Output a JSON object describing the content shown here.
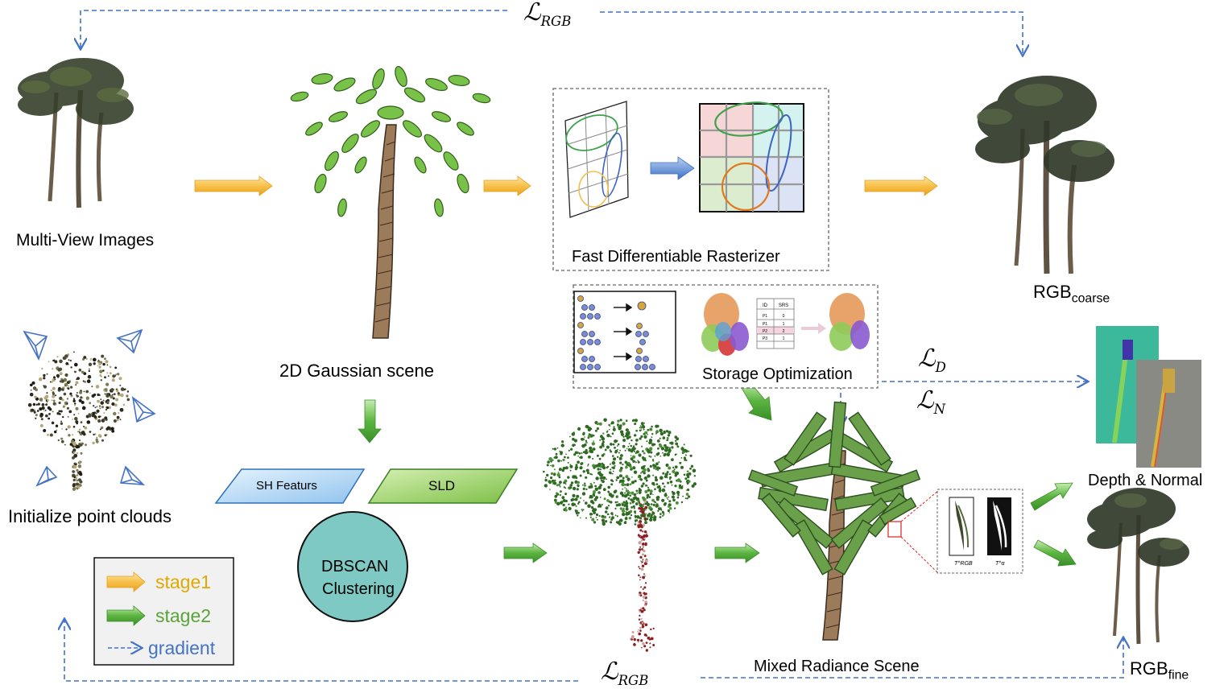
{
  "labels": {
    "multi_view": "Multi-View Images",
    "gaussian_scene": "2D Gaussian scene",
    "rasterizer": "Fast Differentiable Rasterizer",
    "rgb_coarse_main": "RGB",
    "rgb_coarse_sub": "coarse",
    "storage_opt": "Storage Optimization",
    "init_points": "Initialize point clouds",
    "sh_features": "SH Featurs",
    "sld": "SLD",
    "dbscan_line1": "DBSCAN",
    "dbscan_line2": "Clustering",
    "mixed_scene": "Mixed Radiance Scene",
    "depth_normal": "Depth & Normal",
    "rgb_fine_main": "RGB",
    "rgb_fine_sub": "fine"
  },
  "losses": {
    "top_main": "ℒ",
    "top_sub": "RGB",
    "bottom_main": "ℒ",
    "bottom_sub": "RGB",
    "depth_main": "ℒ",
    "depth_sub": "D",
    "normal_main": "ℒ",
    "normal_sub": "N"
  },
  "legend": {
    "stage1": "stage1",
    "stage2": "stage2",
    "gradient": "gradient"
  },
  "texture_labels": {
    "rgb": "T^RGB",
    "alpha": "T^α"
  },
  "storage_table": {
    "headers": [
      "ID",
      "SRS"
    ],
    "rows": [
      [
        "P1",
        "0"
      ],
      [
        "P1",
        "1"
      ],
      [
        "P2",
        "2"
      ],
      [
        "P3",
        "1"
      ]
    ]
  },
  "colors": {
    "stage1": "#f5b835",
    "stage2": "#4ea93a",
    "gradient": "#4472c4",
    "legend_stage1_text": "#e0a800",
    "legend_stage2_text": "#5aa33a",
    "legend_gradient_text": "#4472c4",
    "sh_fill": "#bcdcf5",
    "sld_fill": "#a8d66a",
    "dbscan_fill": "#7ec9c4"
  }
}
